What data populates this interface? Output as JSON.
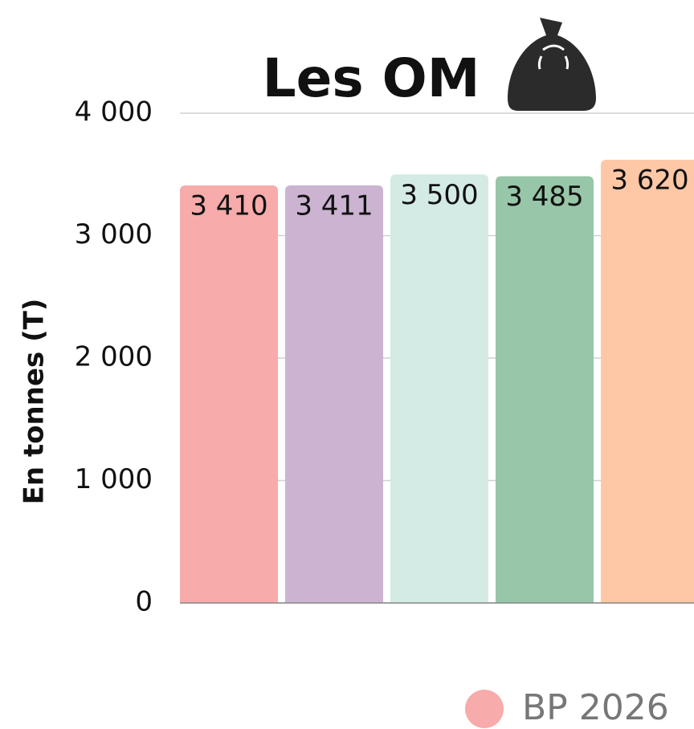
{
  "chart_data": {
    "type": "bar",
    "title": "Les OM",
    "y_label": "En tonnes (T)",
    "values": [
      3410,
      3411,
      3500,
      3485,
      3620
    ],
    "value_labels": [
      "3 410",
      "3 411",
      "3 500",
      "3 485",
      "3 620"
    ],
    "colors": [
      "#f7abab",
      "#cbb3d1",
      "#d4ebe5",
      "#97c6a8",
      "#fec8a6"
    ],
    "ylim": [
      0,
      4000
    ],
    "yticks": [
      0,
      {
        "value": 1000,
        "label": "1 000"
      },
      {
        "value": 2000,
        "label": "2 000"
      },
      {
        "value": 3000,
        "label": "3 000"
      },
      {
        "value": 4000,
        "label": "4 000"
      }
    ],
    "grid": true,
    "legend": [
      {
        "name": "BP 2026",
        "color": "#f7abab"
      }
    ]
  }
}
